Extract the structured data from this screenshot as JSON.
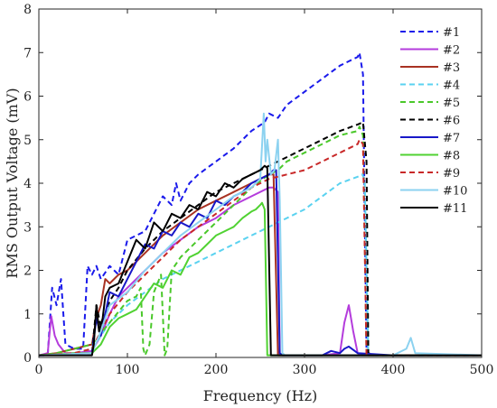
{
  "chart_data": {
    "type": "line",
    "title": "",
    "xlabel": "Frequency (Hz)",
    "ylabel": "RMS Output Voltage (mV)",
    "xlim": [
      0,
      500
    ],
    "ylim": [
      0,
      8
    ],
    "xticks": [
      0,
      100,
      200,
      300,
      400,
      500
    ],
    "yticks": [
      0,
      1,
      2,
      3,
      4,
      5,
      6,
      7,
      8
    ],
    "grid": false,
    "legend_position": "top-right",
    "series": [
      {
        "name": "#1",
        "color": "#1a1aeb",
        "dash": "dashed",
        "x": [
          0,
          10,
          15,
          20,
          25,
          30,
          40,
          50,
          55,
          60,
          65,
          70,
          80,
          90,
          100,
          110,
          120,
          140,
          150,
          155,
          160,
          170,
          180,
          200,
          220,
          240,
          255,
          260,
          270,
          280,
          300,
          320,
          340,
          350,
          360,
          362,
          366,
          370,
          372,
          380,
          400,
          450,
          500
        ],
        "y": [
          0.05,
          0.05,
          1.6,
          1.2,
          1.8,
          0.3,
          0.2,
          0.2,
          2.1,
          1.9,
          2.1,
          1.8,
          2.1,
          1.9,
          2.7,
          2.8,
          2.9,
          3.7,
          3.5,
          4.0,
          3.6,
          4.0,
          4.2,
          4.5,
          4.8,
          5.2,
          5.4,
          5.6,
          5.5,
          5.8,
          6.1,
          6.4,
          6.7,
          6.8,
          6.9,
          7.0,
          6.5,
          0.1,
          0.05,
          0.05,
          0.05,
          0.05,
          0.05
        ]
      },
      {
        "name": "#2",
        "color": "#b43cdc",
        "dash": "solid",
        "x": [
          0,
          10,
          14,
          18,
          22,
          26,
          30,
          40,
          60,
          70,
          80,
          90,
          100,
          120,
          140,
          160,
          180,
          200,
          220,
          240,
          260,
          265,
          270,
          272,
          280,
          300,
          320,
          340,
          345,
          350,
          355,
          360,
          365,
          380,
          420,
          500
        ],
        "y": [
          0.05,
          0.1,
          0.95,
          0.5,
          0.3,
          0.2,
          0.1,
          0.1,
          0.15,
          0.5,
          1.0,
          1.4,
          1.6,
          2.0,
          2.4,
          2.7,
          3.0,
          3.2,
          3.5,
          3.7,
          3.9,
          3.9,
          3.8,
          0.05,
          0.05,
          0.05,
          0.05,
          0.1,
          0.8,
          1.2,
          0.6,
          0.1,
          0.05,
          0.05,
          0.05,
          0.05
        ]
      },
      {
        "name": "#3",
        "color": "#a83222",
        "dash": "solid",
        "x": [
          0,
          20,
          40,
          60,
          65,
          70,
          75,
          80,
          90,
          100,
          120,
          140,
          160,
          180,
          200,
          220,
          240,
          260,
          265,
          270,
          280,
          300,
          500
        ],
        "y": [
          0.05,
          0.1,
          0.2,
          0.3,
          0.9,
          1.2,
          1.8,
          1.7,
          1.9,
          2.0,
          2.4,
          2.8,
          3.1,
          3.4,
          3.6,
          3.8,
          4.0,
          4.2,
          4.2,
          0.05,
          0.05,
          0.05,
          0.05
        ]
      },
      {
        "name": "#4",
        "color": "#5ad2f0",
        "dash": "dashed",
        "x": [
          0,
          40,
          60,
          80,
          100,
          120,
          140,
          160,
          180,
          200,
          220,
          240,
          260,
          280,
          300,
          320,
          340,
          360,
          365,
          368,
          372,
          380,
          500
        ],
        "y": [
          0.05,
          0.1,
          0.2,
          0.8,
          1.2,
          1.5,
          1.8,
          2.0,
          2.2,
          2.4,
          2.6,
          2.8,
          3.0,
          3.2,
          3.4,
          3.7,
          4.0,
          4.15,
          4.2,
          4.1,
          0.05,
          0.05,
          0.05
        ]
      },
      {
        "name": "#5",
        "color": "#4ac82a",
        "dash": "dashed",
        "x": [
          0,
          20,
          40,
          60,
          80,
          100,
          110,
          115,
          118,
          120,
          125,
          130,
          138,
          142,
          145,
          150,
          160,
          180,
          200,
          220,
          240,
          260,
          270,
          280,
          300,
          320,
          340,
          360,
          362,
          366,
          370,
          500
        ],
        "y": [
          0.05,
          0.1,
          0.2,
          0.3,
          0.8,
          1.3,
          1.4,
          1.6,
          0.2,
          0.05,
          0.3,
          1.5,
          1.9,
          0.05,
          0.2,
          2.0,
          2.3,
          2.7,
          3.1,
          3.5,
          3.9,
          4.2,
          4.3,
          4.5,
          4.7,
          4.9,
          5.1,
          5.2,
          5.3,
          5.1,
          0.05,
          0.05
        ]
      },
      {
        "name": "#6",
        "color": "#000000",
        "dash": "dashed",
        "x": [
          0,
          60,
          65,
          70,
          80,
          90,
          100,
          120,
          140,
          160,
          180,
          200,
          220,
          240,
          260,
          270,
          280,
          300,
          320,
          340,
          360,
          366,
          370,
          372,
          380,
          500
        ],
        "y": [
          0.05,
          0.1,
          1.2,
          0.7,
          1.3,
          1.6,
          2.0,
          2.5,
          2.9,
          3.2,
          3.5,
          3.8,
          4.0,
          4.2,
          4.4,
          4.5,
          4.6,
          4.8,
          5.0,
          5.2,
          5.35,
          5.4,
          4.5,
          0.1,
          0.05,
          0.05
        ]
      },
      {
        "name": "#7",
        "color": "#1818c8",
        "dash": "solid",
        "x": [
          0,
          60,
          65,
          70,
          80,
          90,
          100,
          110,
          120,
          130,
          140,
          150,
          160,
          170,
          180,
          190,
          200,
          210,
          220,
          230,
          240,
          250,
          260,
          265,
          268,
          272,
          275,
          280,
          320,
          330,
          340,
          345,
          350,
          360,
          400,
          500
        ],
        "y": [
          0.05,
          0.1,
          0.9,
          0.5,
          1.5,
          1.4,
          1.8,
          2.2,
          2.6,
          2.5,
          2.9,
          2.8,
          3.1,
          3.0,
          3.3,
          3.2,
          3.6,
          3.5,
          3.7,
          3.8,
          4.0,
          4.1,
          4.2,
          4.3,
          4.3,
          0.1,
          0.05,
          0.05,
          0.05,
          0.15,
          0.1,
          0.2,
          0.25,
          0.1,
          0.05,
          0.05
        ]
      },
      {
        "name": "#8",
        "color": "#50d232",
        "dash": "solid",
        "x": [
          0,
          40,
          60,
          70,
          80,
          90,
          100,
          110,
          120,
          130,
          140,
          150,
          160,
          170,
          180,
          190,
          200,
          210,
          220,
          230,
          240,
          245,
          250,
          252,
          255,
          258,
          500
        ],
        "y": [
          0.05,
          0.1,
          0.1,
          0.3,
          0.7,
          0.9,
          1.0,
          1.1,
          1.4,
          1.7,
          1.6,
          2.0,
          1.9,
          2.3,
          2.4,
          2.6,
          2.8,
          2.9,
          3.0,
          3.2,
          3.35,
          3.4,
          3.5,
          3.55,
          3.4,
          0.05,
          0.05
        ]
      },
      {
        "name": "#9",
        "color": "#c82828",
        "dash": "dashed",
        "x": [
          0,
          40,
          60,
          70,
          80,
          100,
          120,
          140,
          160,
          180,
          200,
          220,
          240,
          260,
          280,
          300,
          320,
          340,
          360,
          362,
          366,
          370,
          500
        ],
        "y": [
          0.05,
          0.1,
          0.2,
          0.6,
          1.0,
          1.5,
          1.9,
          2.3,
          2.7,
          3.0,
          3.3,
          3.6,
          3.9,
          4.1,
          4.2,
          4.3,
          4.5,
          4.7,
          4.9,
          5.0,
          4.9,
          0.05,
          0.05
        ]
      },
      {
        "name": "#10",
        "color": "#8cd2f0",
        "dash": "solid",
        "x": [
          0,
          60,
          70,
          80,
          100,
          120,
          140,
          160,
          180,
          200,
          220,
          240,
          250,
          254,
          256,
          258,
          262,
          266,
          270,
          272,
          275,
          278,
          300,
          400,
          415,
          420,
          425,
          500
        ],
        "y": [
          0.05,
          0.1,
          0.6,
          1.2,
          1.5,
          2.0,
          2.4,
          2.8,
          3.1,
          3.4,
          3.7,
          3.9,
          4.1,
          5.6,
          4.5,
          5.0,
          4.2,
          4.3,
          5.0,
          3.6,
          0.1,
          0.05,
          0.05,
          0.05,
          0.2,
          0.45,
          0.1,
          0.05
        ]
      },
      {
        "name": "#11",
        "color": "#000000",
        "dash": "solid",
        "x": [
          0,
          60,
          62,
          65,
          68,
          72,
          75,
          80,
          90,
          100,
          110,
          120,
          130,
          140,
          150,
          160,
          170,
          180,
          190,
          200,
          210,
          220,
          230,
          240,
          250,
          255,
          258,
          262,
          266,
          500
        ],
        "y": [
          0.05,
          0.05,
          0.3,
          1.2,
          0.6,
          0.9,
          1.4,
          1.6,
          1.7,
          2.2,
          2.7,
          2.5,
          3.1,
          2.9,
          3.3,
          3.2,
          3.5,
          3.4,
          3.8,
          3.7,
          4.0,
          3.9,
          4.1,
          4.2,
          4.3,
          4.4,
          4.35,
          0.05,
          0.05,
          0.05
        ]
      }
    ]
  }
}
